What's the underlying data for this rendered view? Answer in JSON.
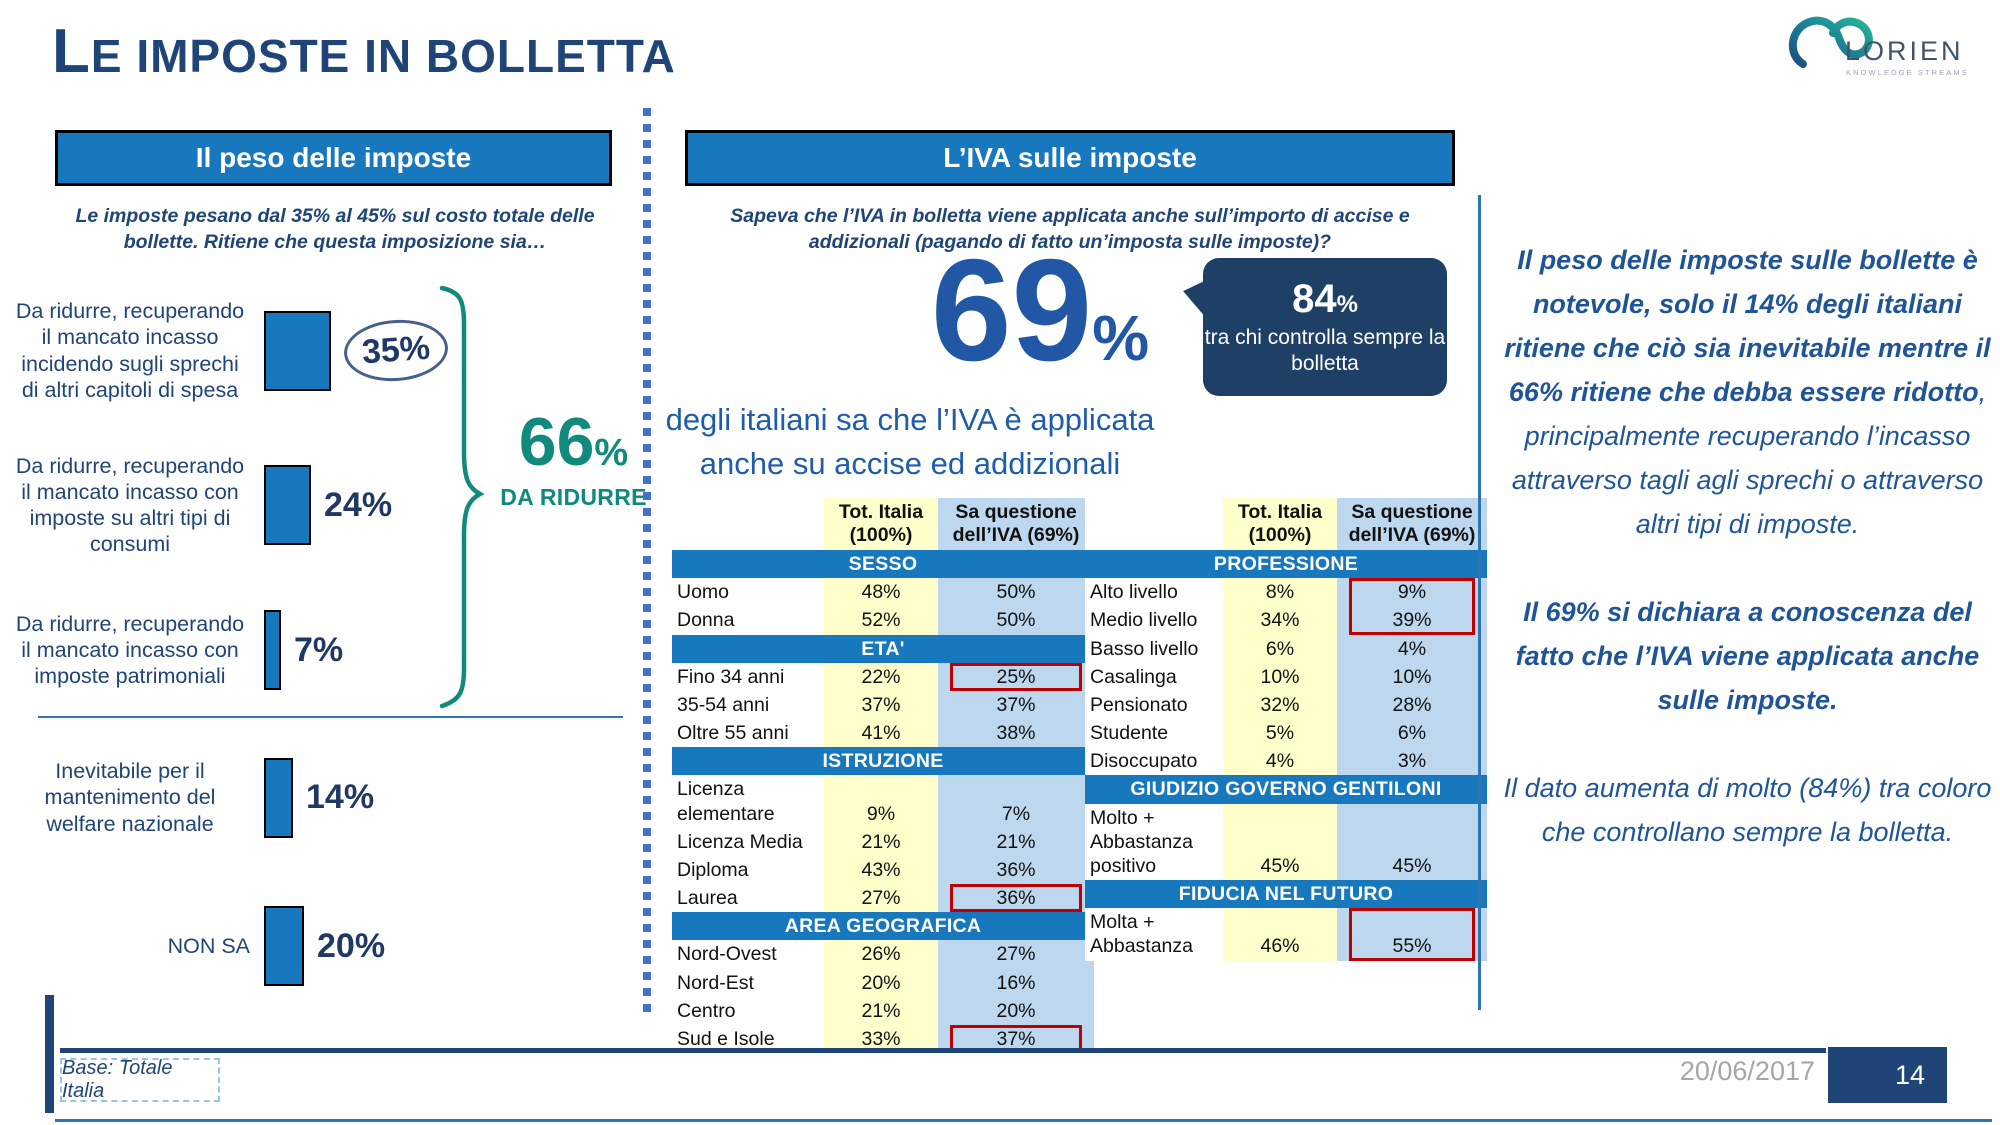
{
  "slide": {
    "title": "Le imposte in bolletta",
    "date": "20/06/2017",
    "page_number": "14",
    "base_note": "Base: Totale Italia"
  },
  "logo": {
    "name": "LORIEN",
    "tagline": "KNOWLEDGE STREAMS"
  },
  "left_panel": {
    "header": "Il peso delle imposte",
    "question": "Le imposte pesano dal 35% al 45% sul costo totale delle bollette. Ritiene che questa imposizione sia…"
  },
  "chart_data": {
    "type": "bar",
    "orientation": "horizontal",
    "title": "Il peso delle imposte",
    "unit": "%",
    "categories": [
      "Da ridurre, recuperando il mancato incasso incidendo sugli sprechi di altri capitoli di spesa",
      "Da ridurre, recuperando il mancato incasso con imposte su altri tipi di consumi",
      "Da ridurre, recuperando il mancato incasso con imposte patrimoniali",
      "Inevitabile per il mantenimento del welfare nazionale",
      "NON SA"
    ],
    "values": [
      35,
      24,
      7,
      14,
      20
    ],
    "emphasis_circle_index": 0,
    "annotation": {
      "value": "66",
      "unit": "%",
      "label": "DA RIDURRE",
      "applies_to": [
        0,
        1,
        2
      ]
    },
    "bar_color": "#1878BE"
  },
  "middle_panel": {
    "header": "L’IVA sulle imposte",
    "question": "Sapeva che l’IVA in bolletta viene applicata anche sull’importo di accise e addizionali (pagando di fatto un’imposta sulle imposte)?",
    "headline_value": "69",
    "headline_unit": "%",
    "callout": {
      "value": "84",
      "unit": "%",
      "text": "tra chi controlla sempre la bolletta"
    },
    "subheadline_line1": "degli italiani sa che l’IVA è applicata",
    "subheadline_line2": "anche su accise ed addizionali"
  },
  "tables": {
    "col_headers": [
      "Tot. Italia (100%)",
      "Sa questione dell’IVA (69%)"
    ],
    "left": {
      "sections": [
        {
          "name": "SESSO",
          "rows": [
            {
              "label": "Uomo",
              "tot": "48%",
              "sa": "50%"
            },
            {
              "label": "Donna",
              "tot": "52%",
              "sa": "50%"
            }
          ]
        },
        {
          "name": "ETA'",
          "rows": [
            {
              "label": "Fino 34 anni",
              "tot": "22%",
              "sa": "25%",
              "hl": "full"
            },
            {
              "label": "35-54 anni",
              "tot": "37%",
              "sa": "37%"
            },
            {
              "label": "Oltre 55 anni",
              "tot": "41%",
              "sa": "38%"
            }
          ]
        },
        {
          "name": "ISTRUZIONE",
          "rows": [
            {
              "label": "Licenza elementare",
              "tot": "9%",
              "sa": "7%"
            },
            {
              "label": "Licenza Media",
              "tot": "21%",
              "sa": "21%"
            },
            {
              "label": "Diploma",
              "tot": "43%",
              "sa": "36%"
            },
            {
              "label": "Laurea",
              "tot": "27%",
              "sa": "36%",
              "hl": "full"
            }
          ]
        },
        {
          "name": "AREA GEOGRAFICA",
          "rows": [
            {
              "label": "Nord-Ovest",
              "tot": "26%",
              "sa": "27%"
            },
            {
              "label": "Nord-Est",
              "tot": "20%",
              "sa": "16%"
            },
            {
              "label": "Centro",
              "tot": "21%",
              "sa": "20%"
            },
            {
              "label": "Sud e Isole",
              "tot": "33%",
              "sa": "37%",
              "hl": "full"
            }
          ]
        }
      ]
    },
    "right": {
      "sections": [
        {
          "name": "PROFESSIONE",
          "rows": [
            {
              "label": "Alto livello",
              "tot": "8%",
              "sa": "9%",
              "hl": "top"
            },
            {
              "label": "Medio livello",
              "tot": "34%",
              "sa": "39%",
              "hl": "bottom"
            },
            {
              "label": "Basso livello",
              "tot": "6%",
              "sa": "4%"
            },
            {
              "label": "Casalinga",
              "tot": "10%",
              "sa": "10%"
            },
            {
              "label": "Pensionato",
              "tot": "32%",
              "sa": "28%"
            },
            {
              "label": "Studente",
              "tot": "5%",
              "sa": "6%"
            },
            {
              "label": "Disoccupato",
              "tot": "4%",
              "sa": "3%"
            }
          ]
        },
        {
          "name": "GIUDIZIO GOVERNO GENTILONI",
          "rows": [
            {
              "label": "Molto + Abbastanza positivo",
              "tot": "45%",
              "sa": "45%"
            }
          ]
        },
        {
          "name": "FIDUCIA NEL FUTURO",
          "rows": [
            {
              "label": "Molta + Abbastanza",
              "tot": "46%",
              "sa": "55%",
              "hl": "full"
            }
          ]
        }
      ]
    }
  },
  "insights": {
    "p1_bold": "Il peso delle imposte sulle bollette è notevole, solo il 14% degli italiani ritiene che ciò sia inevitabile mentre il 66% ritiene che debba essere ridotto",
    "p1_rest": ", principalmente recuperando l’incasso attraverso tagli agli sprechi o attraverso altri tipi di imposte.",
    "p2": "Il 69% si dichiara a conoscenza del fatto che l’IVA viene applicata anche sulle imposte.",
    "p3": "Il dato aumenta di molto (84%) tra coloro che controllano sempre la bolletta."
  },
  "colors": {
    "primary_blue": "#1878BE",
    "navy": "#1F4477",
    "teal": "#0F8A7C",
    "highlight_red": "#C00000",
    "tot_column_bg": "#FFFFCC",
    "sa_column_bg": "#BDD7EE",
    "callout_bg": "#1F4066"
  }
}
